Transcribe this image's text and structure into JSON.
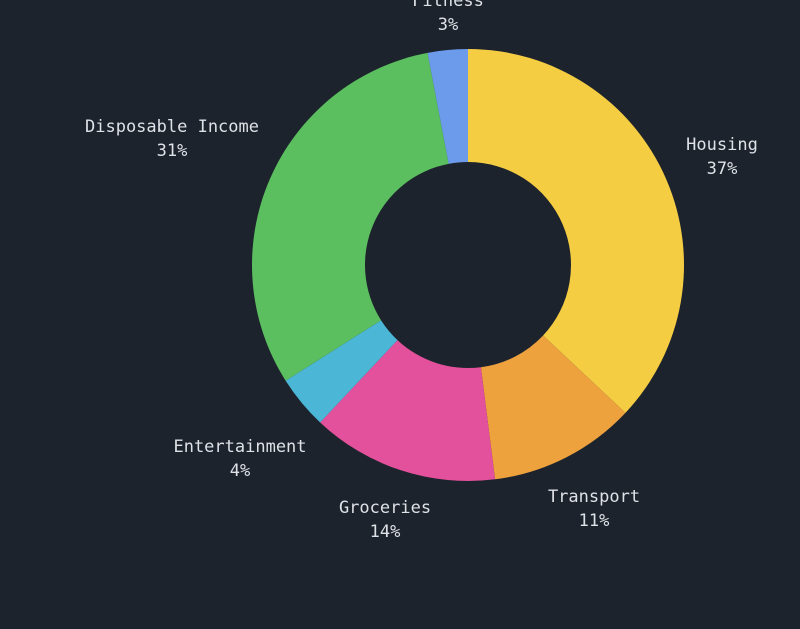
{
  "theme": {
    "background": "#1d232d",
    "label_color": "#dee1e6"
  },
  "chart_data": {
    "type": "pie",
    "subtype": "donut",
    "title": "",
    "legend": "none",
    "labels_outside": true,
    "direction": "clockwise",
    "start_angle_deg": 0,
    "unit": "%",
    "categories": [
      "Housing",
      "Transport",
      "Groceries",
      "Entertainment",
      "Disposable Income",
      "Fitness"
    ],
    "values": [
      37,
      11,
      14,
      4,
      31,
      3
    ],
    "series": [
      {
        "label": "Housing",
        "value": 37,
        "pct_text": "37%",
        "color": "#f5cd43"
      },
      {
        "label": "Transport",
        "value": 11,
        "pct_text": "11%",
        "color": "#eda23e"
      },
      {
        "label": "Groceries",
        "value": 14,
        "pct_text": "14%",
        "color": "#e3519c"
      },
      {
        "label": "Entertainment",
        "value": 4,
        "pct_text": "4%",
        "color": "#4cb6d7"
      },
      {
        "label": "Disposable Income",
        "value": 31,
        "pct_text": "31%",
        "color": "#5bbe5f"
      },
      {
        "label": "Fitness",
        "value": 3,
        "pct_text": "3%",
        "color": "#6c9beb"
      }
    ]
  }
}
